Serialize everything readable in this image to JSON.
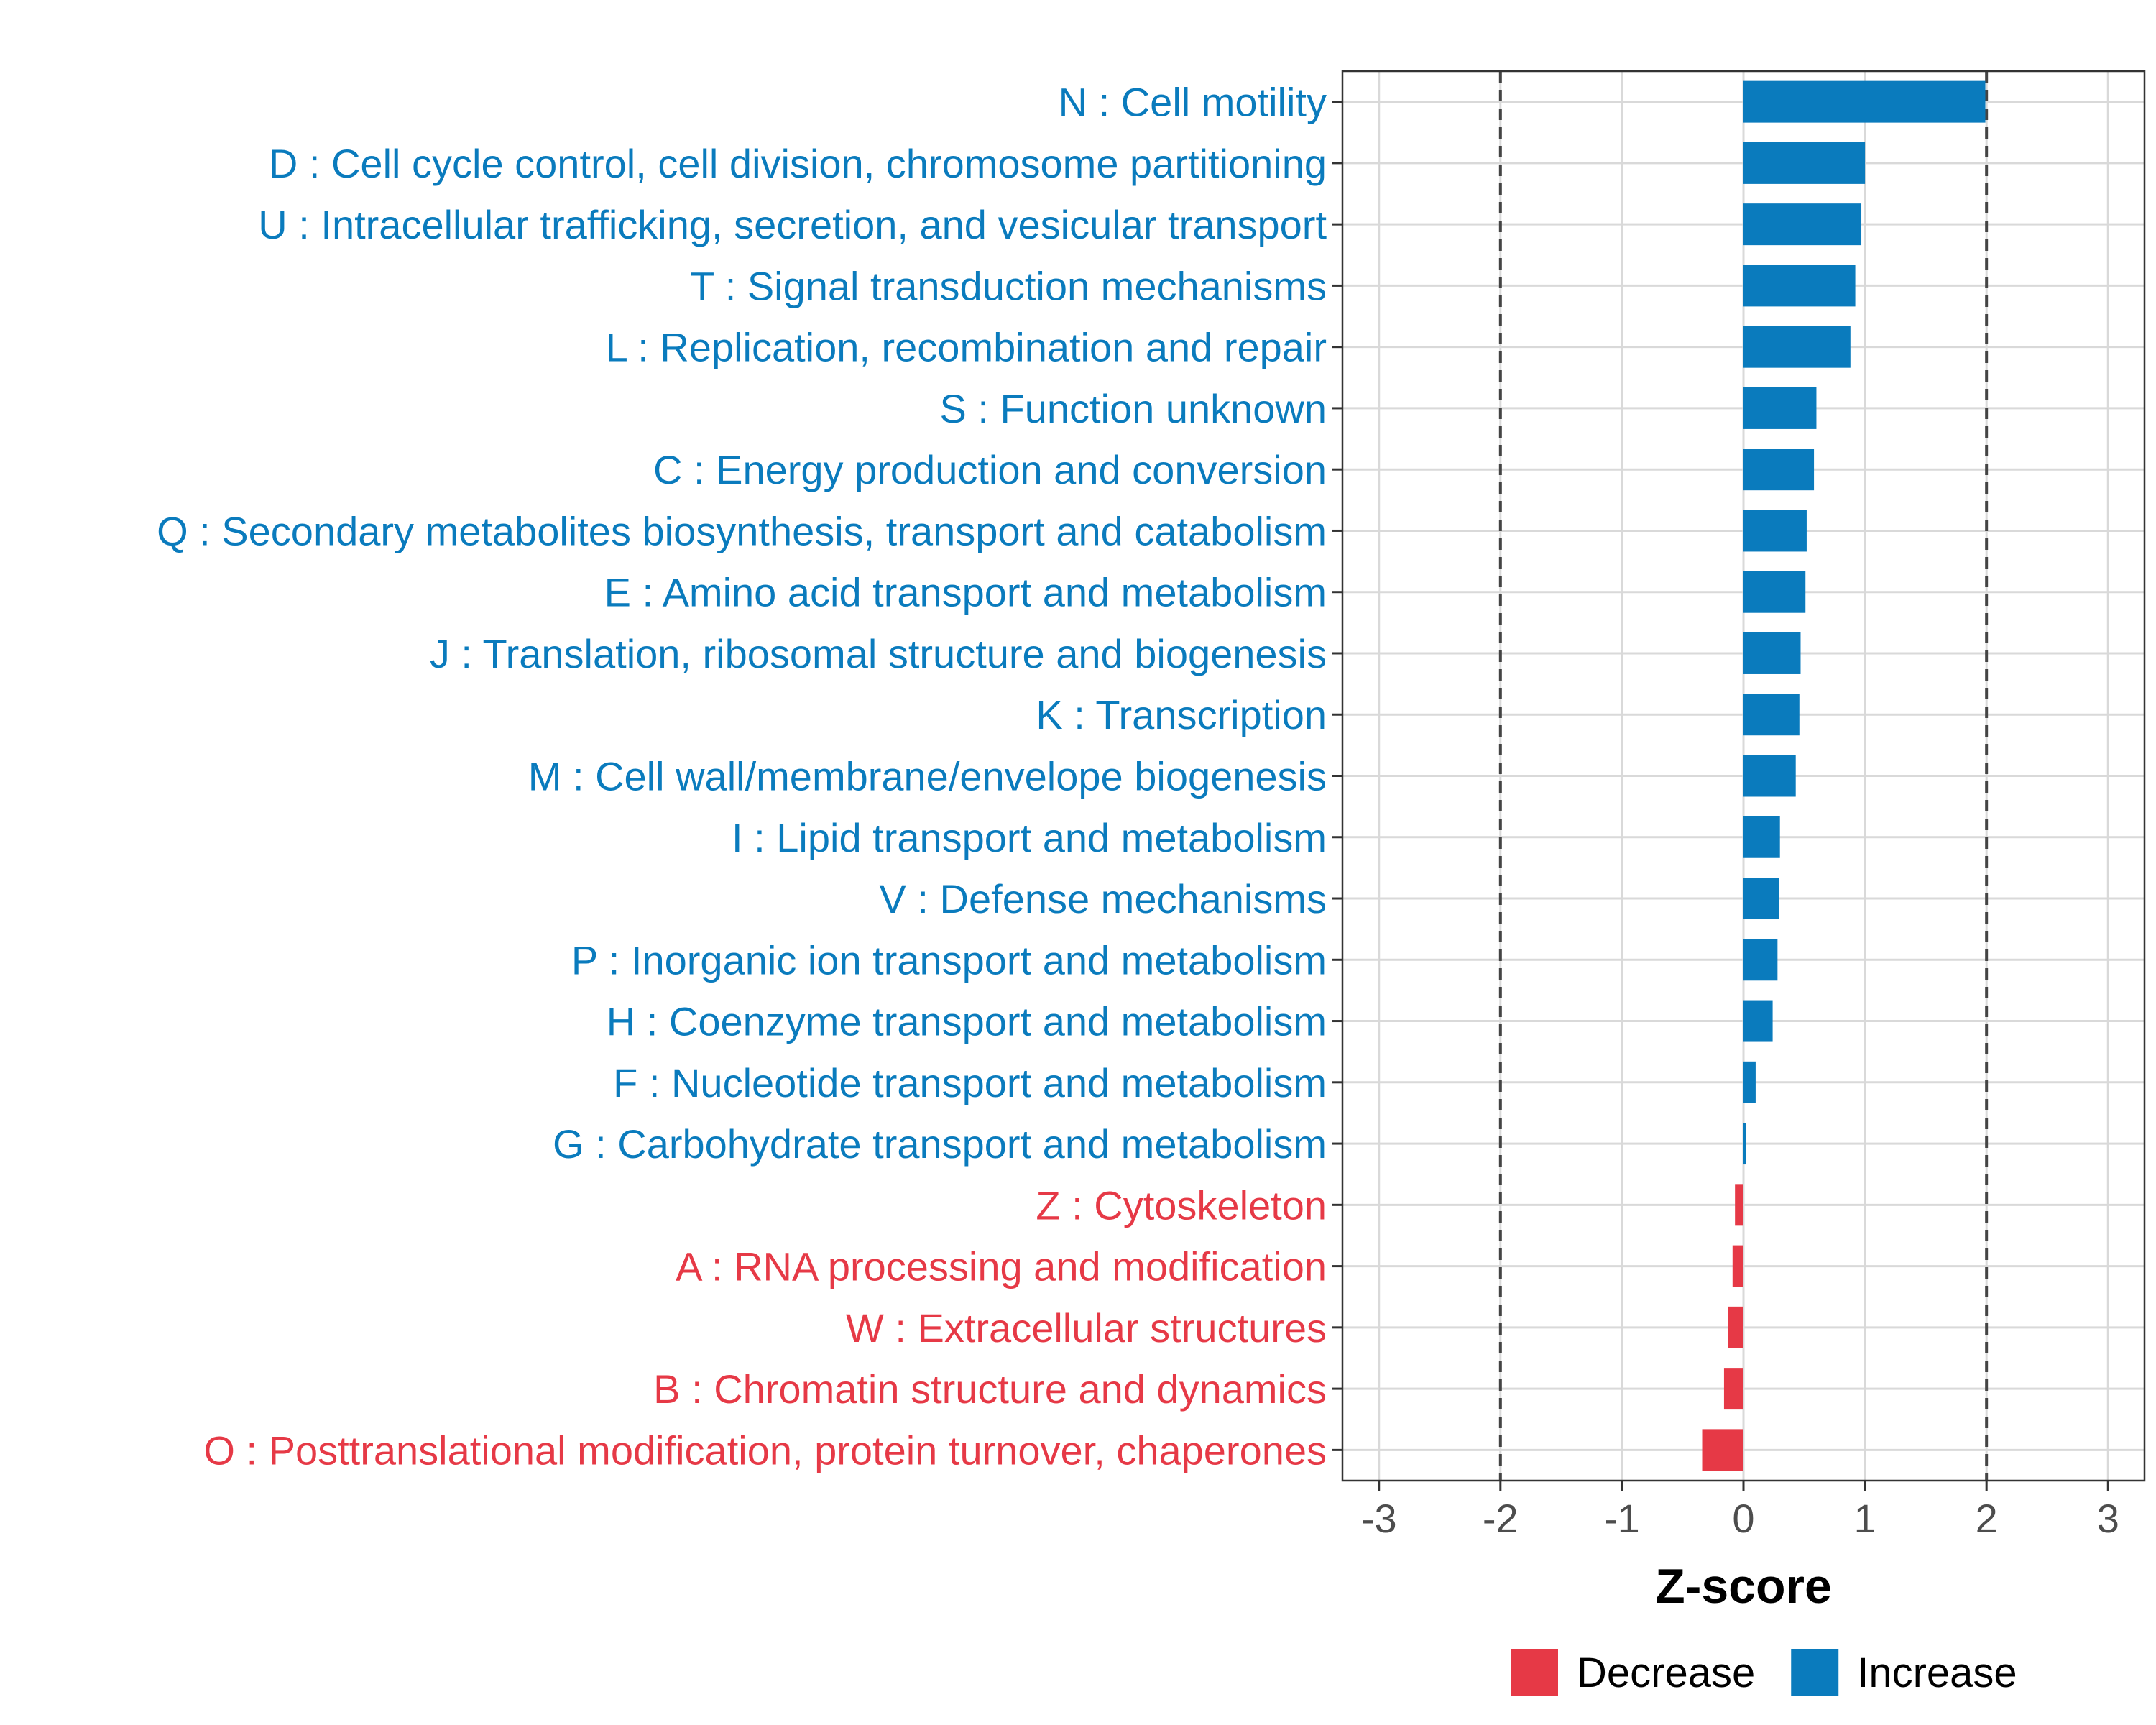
{
  "chart_data": {
    "type": "bar",
    "orientation": "horizontal",
    "xlabel": "Z-score",
    "xlim": [
      -3.3,
      3.3
    ],
    "x_ticks": [
      -3,
      -2,
      -1,
      0,
      1,
      2,
      3
    ],
    "x_tick_labels": [
      "-3",
      "-2",
      "-1",
      "0",
      "1",
      "2",
      "3"
    ],
    "reference_lines": [
      -2,
      2
    ],
    "grid": true,
    "colors": {
      "Increase": "#0a7bbd",
      "Decrease": "#e63946"
    },
    "categories": [
      "N : Cell motility",
      "D : Cell cycle control, cell division, chromosome partitioning",
      "U : Intracellular trafficking, secretion, and vesicular transport",
      "T : Signal transduction mechanisms",
      "L : Replication, recombination and repair",
      "S : Function unknown",
      "C : Energy production and conversion",
      "Q : Secondary metabolites biosynthesis, transport and catabolism",
      "E : Amino acid transport and metabolism",
      "J : Translation, ribosomal structure and biogenesis",
      "K : Transcription",
      "M : Cell wall/membrane/envelope biogenesis",
      "I : Lipid transport and metabolism",
      "V : Defense mechanisms",
      "P : Inorganic ion transport and metabolism",
      "H : Coenzyme transport and metabolism",
      "F : Nucleotide transport and metabolism",
      "G : Carbohydrate transport and metabolism",
      "Z : Cytoskeleton",
      "A : RNA processing and modification",
      "W : Extracellular structures",
      "B : Chromatin structure and dynamics",
      "O : Posttranslational modification, protein turnover, chaperones"
    ],
    "values": [
      1.99,
      1.0,
      0.97,
      0.92,
      0.88,
      0.6,
      0.58,
      0.52,
      0.51,
      0.47,
      0.46,
      0.43,
      0.3,
      0.29,
      0.28,
      0.24,
      0.1,
      0.02,
      -0.07,
      -0.09,
      -0.13,
      -0.16,
      -0.34
    ],
    "groups": [
      "Increase",
      "Increase",
      "Increase",
      "Increase",
      "Increase",
      "Increase",
      "Increase",
      "Increase",
      "Increase",
      "Increase",
      "Increase",
      "Increase",
      "Increase",
      "Increase",
      "Increase",
      "Increase",
      "Increase",
      "Increase",
      "Decrease",
      "Decrease",
      "Decrease",
      "Decrease",
      "Decrease"
    ],
    "legend": {
      "placement": "bottom",
      "entries": [
        {
          "label": "Decrease",
          "color": "#e63946"
        },
        {
          "label": "Increase",
          "color": "#0a7bbd"
        }
      ]
    }
  }
}
